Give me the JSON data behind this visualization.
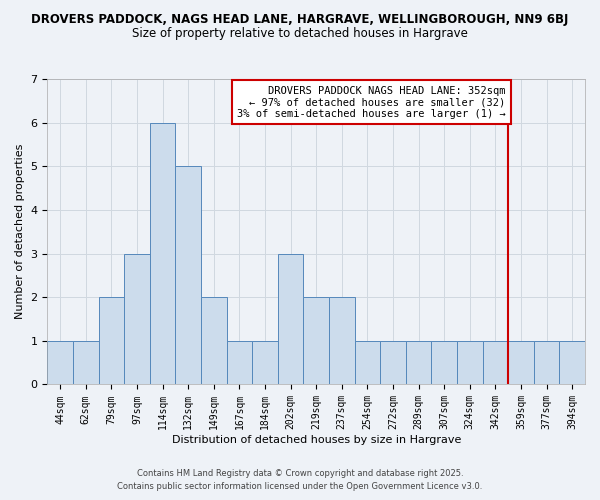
{
  "title1": "DROVERS PADDOCK, NAGS HEAD LANE, HARGRAVE, WELLINGBOROUGH, NN9 6BJ",
  "title2": "Size of property relative to detached houses in Hargrave",
  "xlabel": "Distribution of detached houses by size in Hargrave",
  "ylabel": "Number of detached properties",
  "bar_labels": [
    "44sqm",
    "62sqm",
    "79sqm",
    "97sqm",
    "114sqm",
    "132sqm",
    "149sqm",
    "167sqm",
    "184sqm",
    "202sqm",
    "219sqm",
    "237sqm",
    "254sqm",
    "272sqm",
    "289sqm",
    "307sqm",
    "324sqm",
    "342sqm",
    "359sqm",
    "377sqm",
    "394sqm"
  ],
  "bar_values": [
    1,
    1,
    2,
    3,
    6,
    5,
    2,
    1,
    1,
    3,
    2,
    2,
    1,
    1,
    1,
    1,
    1,
    1,
    1,
    1,
    1
  ],
  "bar_color": "#ccdcec",
  "bar_edge_color": "#5588bb",
  "grid_color": "#d0d8e0",
  "background_color": "#eef2f7",
  "red_line_x": 17.5,
  "red_line_color": "#cc0000",
  "ylim": [
    0,
    7
  ],
  "yticks": [
    0,
    1,
    2,
    3,
    4,
    5,
    6,
    7
  ],
  "annotation_text": "DROVERS PADDOCK NAGS HEAD LANE: 352sqm\n← 97% of detached houses are smaller (32)\n3% of semi-detached houses are larger (1) →",
  "annotation_fontsize": 7.5,
  "footnote1": "Contains HM Land Registry data © Crown copyright and database right 2025.",
  "footnote2": "Contains public sector information licensed under the Open Government Licence v3.0.",
  "title1_fontsize": 8.5,
  "title2_fontsize": 8.5,
  "axis_label_fontsize": 8,
  "tick_fontsize": 7
}
